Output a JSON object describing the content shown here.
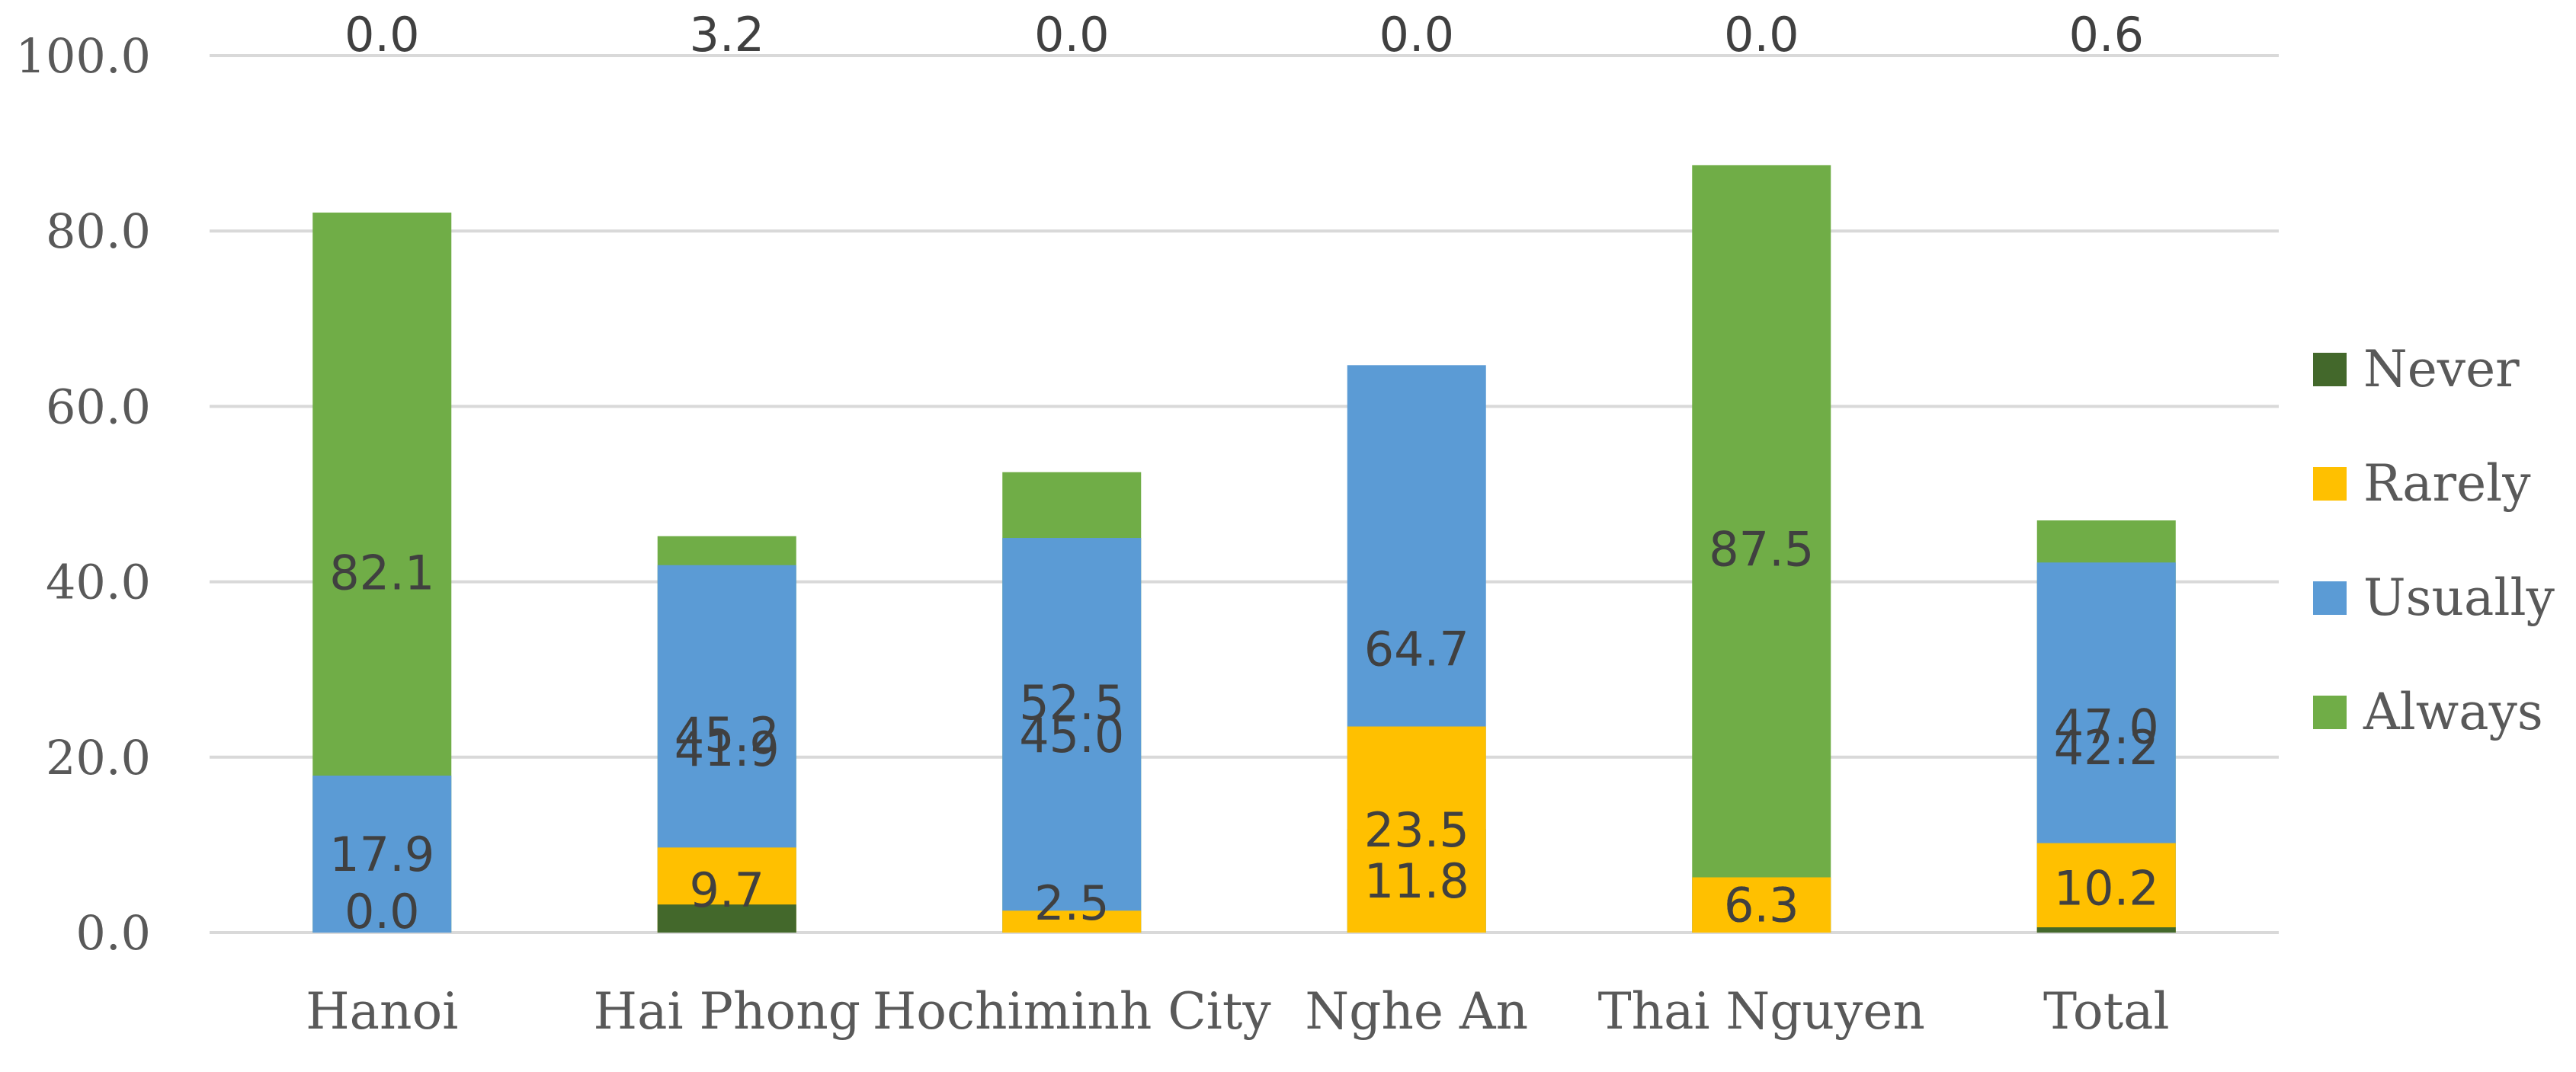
{
  "chart_data": {
    "type": "bar",
    "stacked": true,
    "categories": [
      "Hanoi",
      "Hai Phong",
      "Hochiminh City",
      "Nghe An",
      "Thai Nguyen",
      "Total"
    ],
    "series": [
      {
        "name": "Always",
        "color": "#70AD47",
        "values": [
          82.1,
          45.2,
          52.5,
          11.8,
          87.5,
          47.0
        ]
      },
      {
        "name": "Usually",
        "color": "#5B9BD5",
        "values": [
          17.9,
          41.9,
          45.0,
          64.7,
          6.3,
          42.2
        ]
      },
      {
        "name": "Rarely",
        "color": "#FFC000",
        "values": [
          0.0,
          9.7,
          2.5,
          23.5,
          6.3,
          10.2
        ]
      },
      {
        "name": "Never",
        "color": "#43682B",
        "values": [
          0.0,
          3.2,
          0.0,
          0.0,
          0.0,
          0.6
        ]
      }
    ],
    "data_labels": [
      [
        "82.1",
        "45.2",
        "52.5",
        "11.8",
        "87.5",
        "47.0"
      ],
      [
        "17.9",
        "41.9",
        "45.0",
        "64.7",
        "6.3",
        "42.2"
      ],
      [
        "0.0",
        "9.7",
        "2.5",
        "23.5",
        "6.3",
        "10.2"
      ],
      [
        "0.0",
        "3.2",
        "0.0",
        "0.0",
        "0.0",
        "0.6"
      ]
    ],
    "y_ticks": [
      "0.0",
      "20.0",
      "40.0",
      "60.0",
      "80.0",
      "100.0"
    ],
    "ylim": [
      0,
      100
    ],
    "grid": true,
    "legend_position": "right",
    "legend_order": [
      "Never",
      "Rarely",
      "Usually",
      "Always"
    ],
    "title": "",
    "xlabel": "",
    "ylabel": ""
  }
}
